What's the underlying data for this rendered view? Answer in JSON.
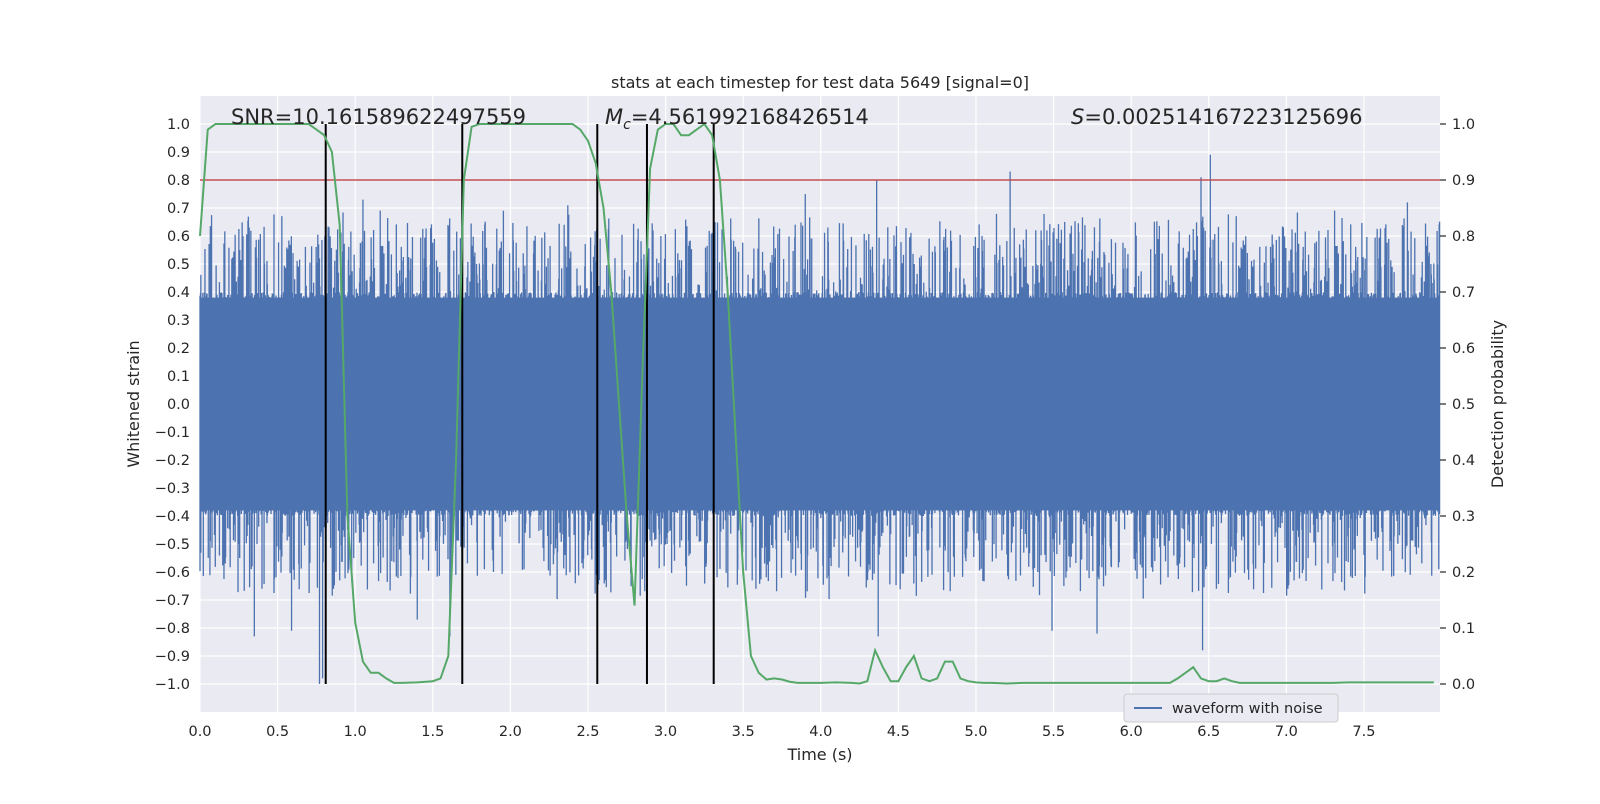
{
  "chart_data": {
    "type": "line",
    "title": "stats at each timestep for test data 5649 [signal=0]",
    "xlabel": "Time (s)",
    "ylabel": "Whitened strain",
    "y2label": "Detection probability",
    "xlim": [
      0.0,
      7.99
    ],
    "ylim": [
      -1.1,
      1.1
    ],
    "y2lim": [
      -0.05,
      1.05
    ],
    "grid": true,
    "legend_position": "bottom-right",
    "x_ticks": [
      "0.0",
      "0.5",
      "1.0",
      "1.5",
      "2.0",
      "2.5",
      "3.0",
      "3.5",
      "4.0",
      "4.5",
      "5.0",
      "5.5",
      "6.0",
      "6.5",
      "7.0",
      "7.5"
    ],
    "y_ticks": [
      "1.0",
      "0.9",
      "0.8",
      "0.7",
      "0.6",
      "0.5",
      "0.4",
      "0.3",
      "0.2",
      "0.1",
      "0.0",
      "−0.1",
      "−0.2",
      "−0.3",
      "−0.4",
      "−0.5",
      "−0.6",
      "−0.7",
      "−0.8",
      "−0.9",
      "−1.0"
    ],
    "y2_ticks": [
      "1.0",
      "0.9",
      "0.8",
      "0.7",
      "0.6",
      "0.5",
      "0.4",
      "0.3",
      "0.2",
      "0.1",
      "0.0"
    ],
    "annotations": {
      "snr": "SNR=10.161589622497559",
      "mc_symbol": "M",
      "mc_sub": "c",
      "mc_value": "=4.561992168426514",
      "s_symbol": "S",
      "s_value": "=0.002514167223125696"
    },
    "threshold": {
      "y2": 0.9,
      "color": "#c44e52"
    },
    "vertical_markers_x": [
      0.81,
      1.69,
      2.56,
      2.88,
      3.31
    ],
    "series": [
      {
        "name": "waveform with noise",
        "color": "#4c72b0",
        "description": "whitened strain noise, |values| mostly within 0.6 with spikes near 1.0",
        "spikes": [
          {
            "x": 0.77,
            "y": -1.0
          },
          {
            "x": 0.79,
            "y": -0.98
          },
          {
            "x": 0.35,
            "y": -0.83
          },
          {
            "x": 0.59,
            "y": -0.81
          },
          {
            "x": 1.61,
            "y": -0.83
          },
          {
            "x": 1.4,
            "y": -0.77
          },
          {
            "x": 4.36,
            "y": 0.8
          },
          {
            "x": 4.37,
            "y": -0.83
          },
          {
            "x": 6.51,
            "y": 0.89
          },
          {
            "x": 6.45,
            "y": 0.81
          },
          {
            "x": 6.46,
            "y": -0.88
          },
          {
            "x": 5.22,
            "y": 0.83
          },
          {
            "x": 1.05,
            "y": 0.73
          },
          {
            "x": 7.78,
            "y": 0.72
          },
          {
            "x": 5.78,
            "y": -0.82
          },
          {
            "x": 5.49,
            "y": -0.81
          },
          {
            "x": 2.37,
            "y": 0.71
          },
          {
            "x": 3.9,
            "y": 0.75
          }
        ]
      },
      {
        "name": "",
        "color": "#55a868",
        "axis": "y2",
        "x": [
          0.0,
          0.05,
          0.1,
          0.2,
          0.3,
          0.4,
          0.5,
          0.6,
          0.7,
          0.75,
          0.8,
          0.85,
          0.9,
          0.95,
          1.0,
          1.05,
          1.1,
          1.15,
          1.2,
          1.25,
          1.3,
          1.4,
          1.5,
          1.55,
          1.6,
          1.65,
          1.7,
          1.75,
          1.8,
          1.85,
          1.9,
          2.0,
          2.1,
          2.2,
          2.3,
          2.4,
          2.45,
          2.5,
          2.55,
          2.6,
          2.65,
          2.7,
          2.75,
          2.8,
          2.85,
          2.9,
          2.95,
          3.0,
          3.05,
          3.1,
          3.15,
          3.2,
          3.25,
          3.3,
          3.35,
          3.4,
          3.45,
          3.5,
          3.55,
          3.6,
          3.65,
          3.7,
          3.75,
          3.8,
          3.85,
          3.9,
          4.0,
          4.1,
          4.2,
          4.25,
          4.3,
          4.35,
          4.4,
          4.45,
          4.5,
          4.55,
          4.6,
          4.65,
          4.7,
          4.75,
          4.8,
          4.85,
          4.9,
          4.95,
          5.0,
          5.05,
          5.1,
          5.2,
          5.3,
          5.4,
          5.5,
          5.6,
          5.7,
          5.8,
          5.9,
          6.0,
          6.1,
          6.2,
          6.25,
          6.3,
          6.35,
          6.4,
          6.45,
          6.5,
          6.55,
          6.6,
          6.65,
          6.7,
          6.8,
          6.9,
          7.0,
          7.1,
          7.2,
          7.3,
          7.4,
          7.5,
          7.6,
          7.7,
          7.8,
          7.9,
          7.95
        ],
        "values": [
          0.8,
          0.99,
          1.0,
          1.0,
          1.0,
          1.0,
          1.0,
          1.0,
          1.0,
          0.99,
          0.98,
          0.95,
          0.82,
          0.3,
          0.11,
          0.04,
          0.02,
          0.02,
          0.01,
          0.002,
          0.002,
          0.003,
          0.005,
          0.01,
          0.05,
          0.4,
          0.9,
          0.995,
          1.0,
          1.0,
          1.0,
          1.0,
          1.0,
          1.0,
          1.0,
          1.0,
          0.99,
          0.97,
          0.93,
          0.85,
          0.7,
          0.5,
          0.3,
          0.14,
          0.55,
          0.92,
          0.99,
          1.0,
          1.0,
          0.98,
          0.98,
          0.99,
          1.0,
          0.98,
          0.9,
          0.7,
          0.45,
          0.2,
          0.05,
          0.02,
          0.008,
          0.01,
          0.008,
          0.004,
          0.002,
          0.002,
          0.002,
          0.003,
          0.002,
          0.001,
          0.005,
          0.06,
          0.03,
          0.005,
          0.005,
          0.03,
          0.05,
          0.01,
          0.005,
          0.01,
          0.04,
          0.04,
          0.01,
          0.005,
          0.003,
          0.002,
          0.002,
          0.001,
          0.002,
          0.002,
          0.002,
          0.002,
          0.002,
          0.002,
          0.002,
          0.002,
          0.002,
          0.002,
          0.002,
          0.01,
          0.02,
          0.03,
          0.01,
          0.005,
          0.005,
          0.01,
          0.005,
          0.002,
          0.002,
          0.002,
          0.002,
          0.002,
          0.002,
          0.002,
          0.003,
          0.003,
          0.003,
          0.003,
          0.003,
          0.003,
          0.003
        ]
      }
    ]
  }
}
